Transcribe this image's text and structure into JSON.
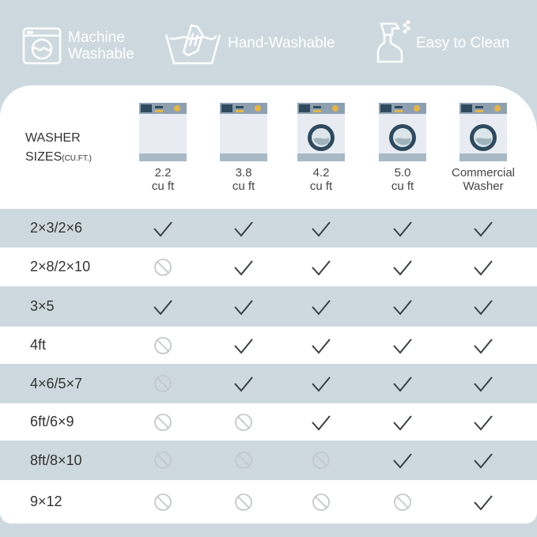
{
  "features": [
    {
      "icon": "washing-machine-icon",
      "label_lines": [
        "Machine",
        "Washable"
      ]
    },
    {
      "icon": "hand-wash-icon",
      "label_lines": [
        "Hand-Washable"
      ]
    },
    {
      "icon": "spray-bottle-icon",
      "label_lines": [
        "Easy to Clean"
      ]
    }
  ],
  "table": {
    "header_lines": [
      "WASHER",
      "SIZES"
    ],
    "header_unit": "(CU.FT.)",
    "columns": [
      {
        "lines": [
          "2.2",
          "cu ft"
        ],
        "image": "top-load-washer",
        "door": false
      },
      {
        "lines": [
          "3.8",
          "cu ft"
        ],
        "image": "top-load-washer",
        "door": false
      },
      {
        "lines": [
          "4.2",
          "cu ft"
        ],
        "image": "front-load-washer",
        "door": true
      },
      {
        "lines": [
          "5.0",
          "cu ft"
        ],
        "image": "front-load-washer",
        "door": true
      },
      {
        "lines": [
          "Commercial",
          "Washer"
        ],
        "image": "front-load-washer",
        "door": true
      }
    ],
    "rows": [
      {
        "size": "2×3/2×6",
        "fits": [
          true,
          true,
          true,
          true,
          true
        ]
      },
      {
        "size": "2×8/2×10",
        "fits": [
          false,
          true,
          true,
          true,
          true
        ]
      },
      {
        "size": "3×5",
        "fits": [
          true,
          true,
          true,
          true,
          true
        ]
      },
      {
        "size": "4ft",
        "fits": [
          false,
          true,
          true,
          true,
          true
        ]
      },
      {
        "size": "4×6/5×7",
        "fits": [
          false,
          true,
          true,
          true,
          true
        ]
      },
      {
        "size": "6ft/6×9",
        "fits": [
          false,
          false,
          true,
          true,
          true
        ]
      },
      {
        "size": "8ft/8×10",
        "fits": [
          false,
          false,
          false,
          true,
          true
        ]
      },
      {
        "size": "9×12",
        "fits": [
          false,
          false,
          false,
          false,
          true
        ]
      }
    ]
  },
  "colors": {
    "background": "#cdd9df",
    "check": "#3a3f44",
    "no": "#c4c8cb"
  }
}
